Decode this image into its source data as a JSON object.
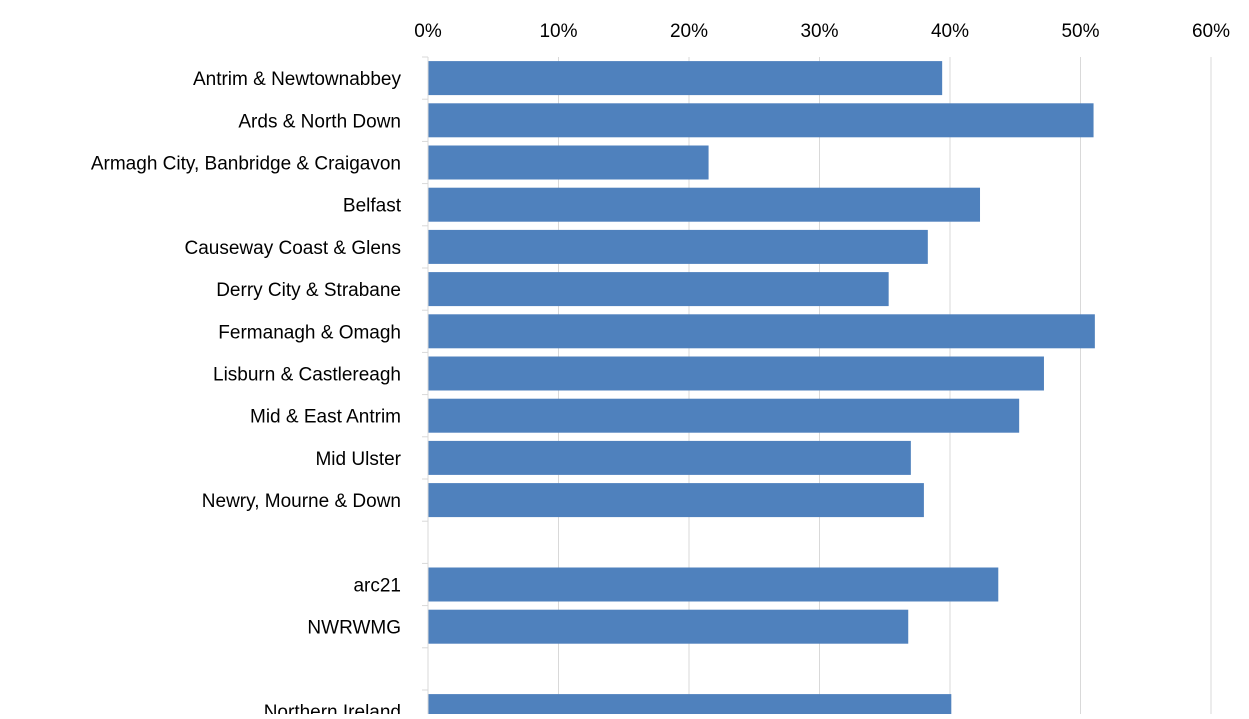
{
  "chart_data": {
    "type": "bar",
    "orientation": "horizontal",
    "title": "",
    "xlabel": "",
    "ylabel": "",
    "xlim": [
      0,
      60
    ],
    "x_ticks": [
      0,
      10,
      20,
      30,
      40,
      50,
      60
    ],
    "x_tick_labels": [
      "0%",
      "10%",
      "20%",
      "30%",
      "40%",
      "50%",
      "60%"
    ],
    "x_axis_position": "top",
    "grid": "vertical",
    "legend": "none",
    "bar_color": "#4f81bd",
    "grid_color": "#d9d9d9",
    "categories": [
      "Antrim & Newtownabbey",
      "Ards & North Down",
      "Armagh City, Banbridge & Craigavon",
      "Belfast",
      "Causeway Coast  & Glens",
      "Derry City & Strabane",
      "Fermanagh & Omagh",
      "Lisburn & Castlereagh",
      "Mid & East Antrim",
      "Mid Ulster",
      "Newry, Mourne & Down",
      "",
      "arc21",
      "NWRWMG",
      "",
      "Northern Ireland"
    ],
    "values": [
      39.4,
      51.0,
      21.5,
      42.3,
      38.3,
      35.3,
      51.1,
      47.2,
      45.3,
      37.0,
      38.0,
      null,
      43.7,
      36.8,
      null,
      40.1
    ]
  }
}
